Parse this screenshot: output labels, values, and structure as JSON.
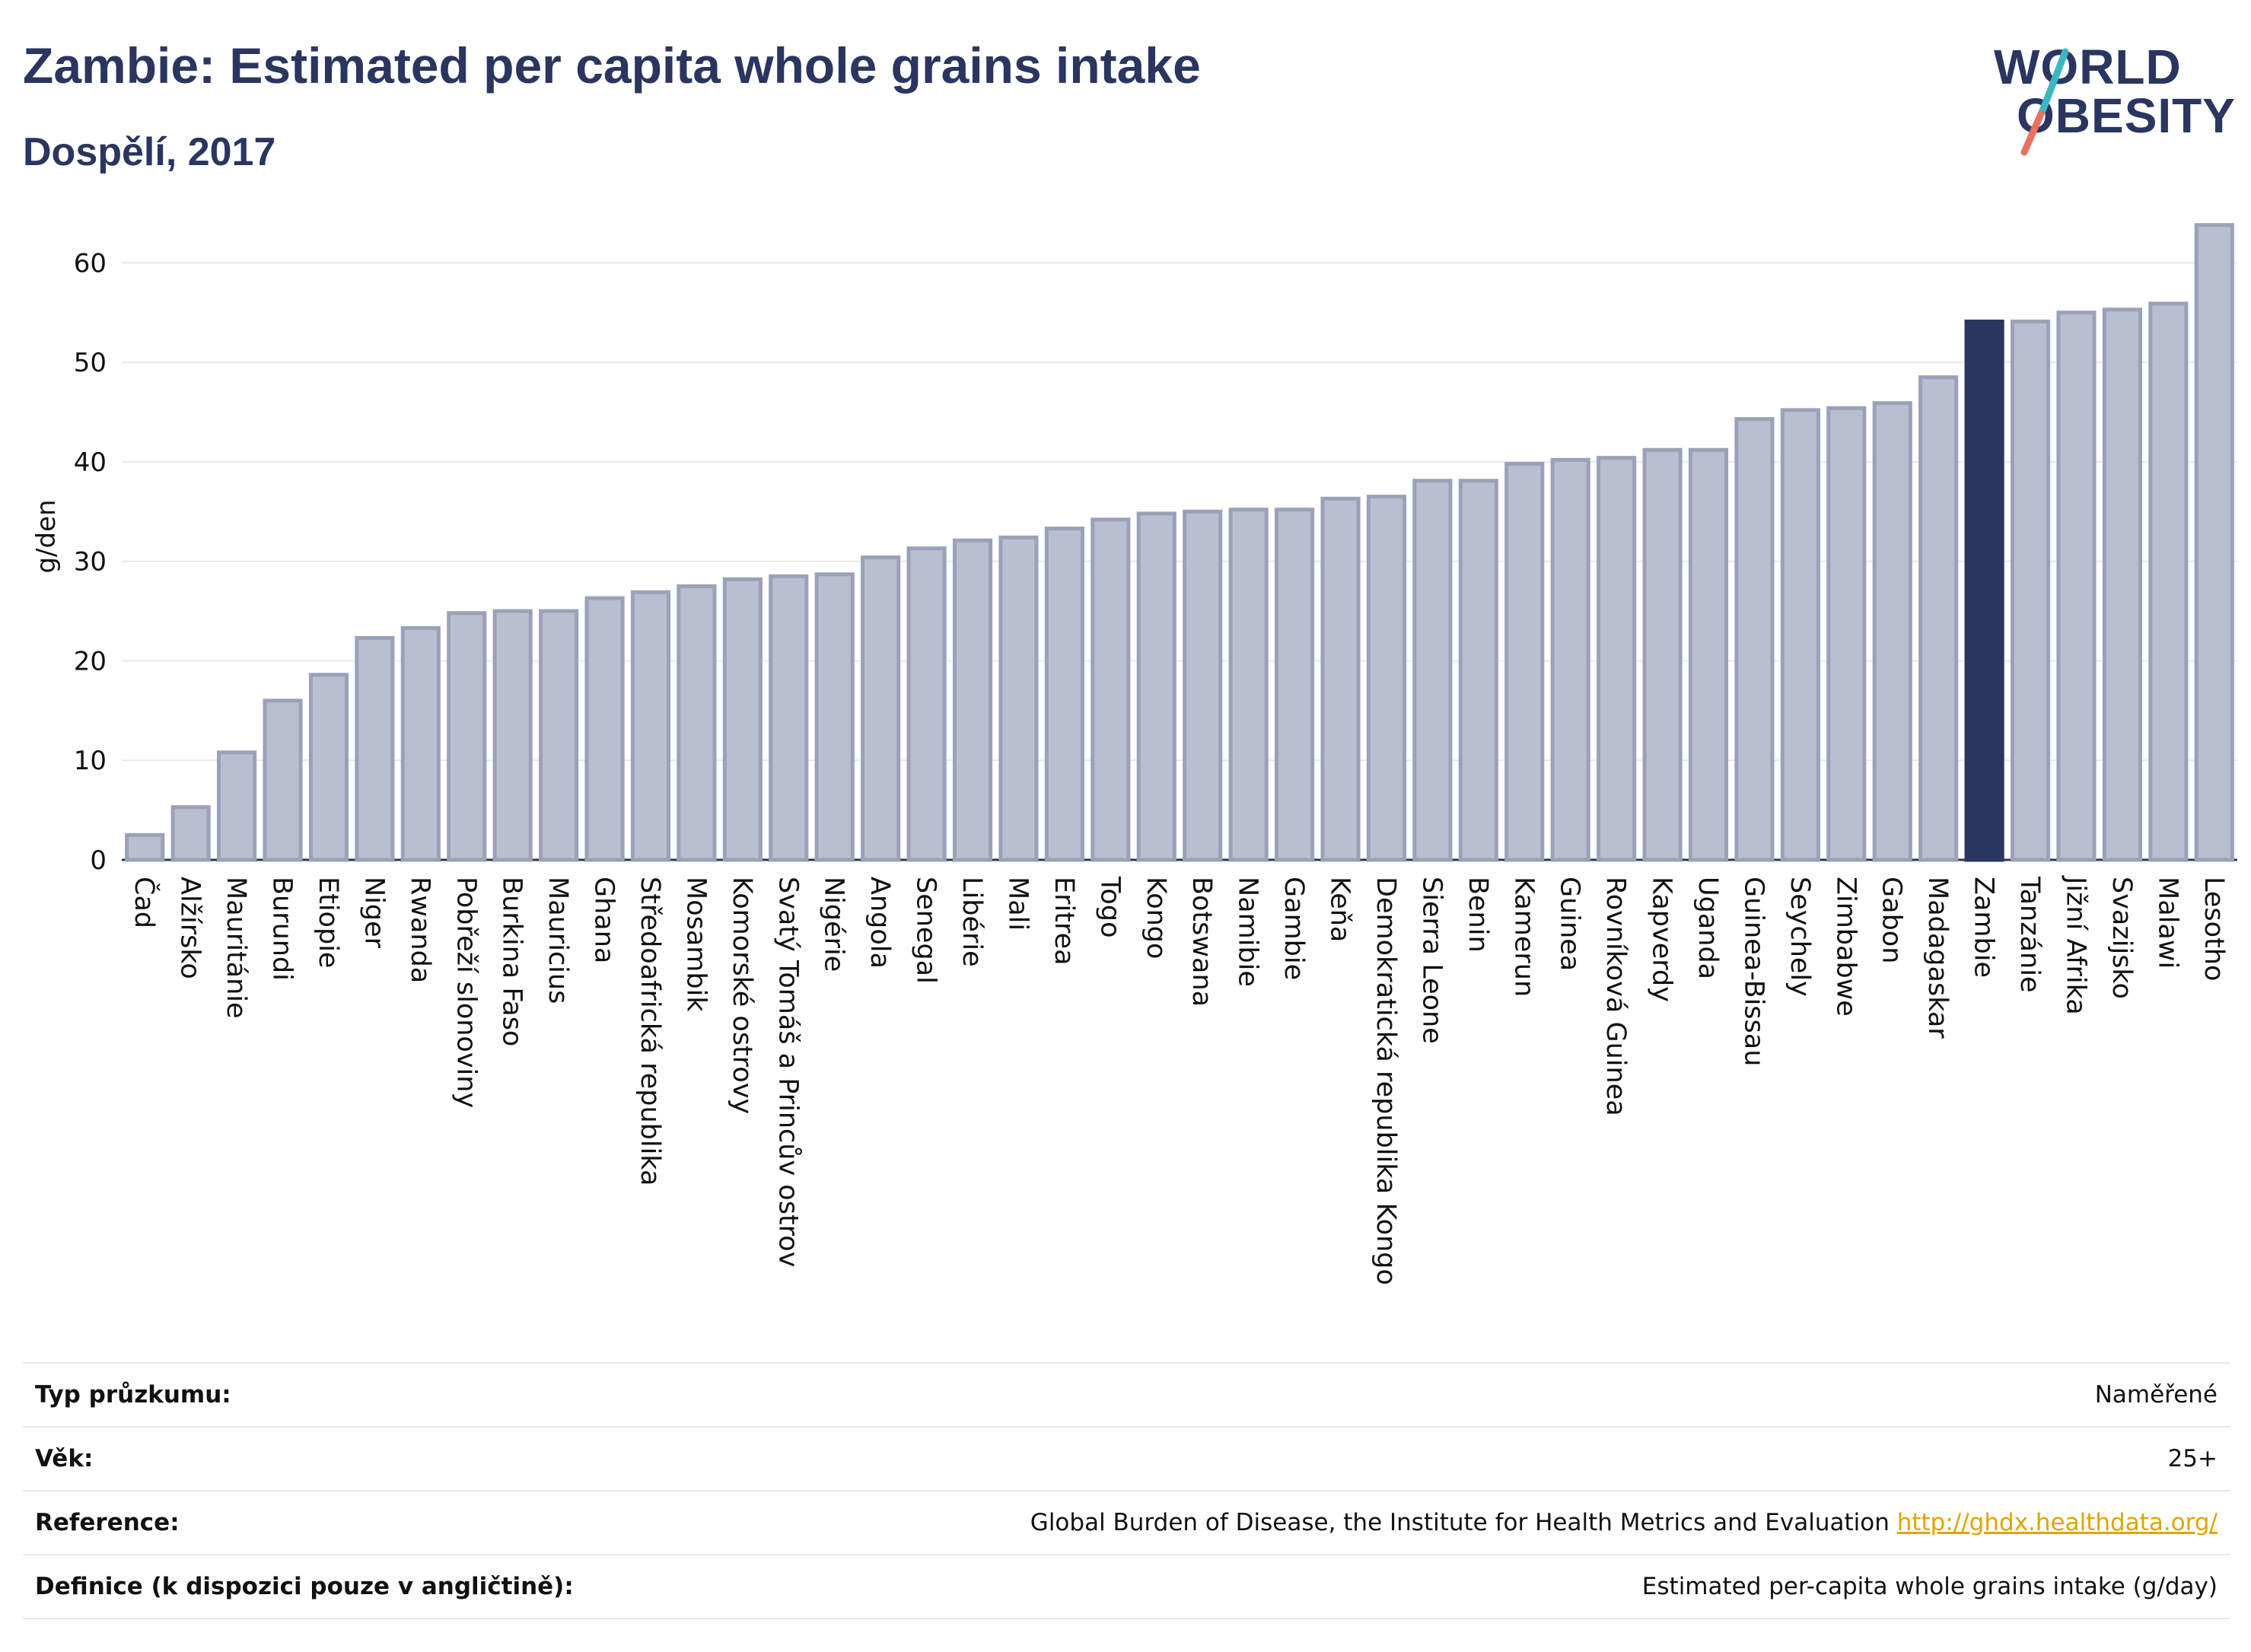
{
  "title": "Zambie: Estimated per capita whole grains intake",
  "subtitle": "Dospělí, 2017",
  "logo": {
    "line1": "WORLD",
    "line2": "OBESITY"
  },
  "colors": {
    "bar": "#b9bfd0",
    "bar_edge": "#9aa1b8",
    "highlight": "#2a3560",
    "grid": "#e6e8ee",
    "text": "#2a3560"
  },
  "chart_data": {
    "type": "bar",
    "ylabel": "g/den",
    "ylim": [
      0,
      65
    ],
    "yticks": [
      0,
      10,
      20,
      30,
      40,
      50,
      60
    ],
    "highlight": "Zambie",
    "categories": [
      "Čad",
      "Alžírsko",
      "Mauritánie",
      "Burundi",
      "Etiopie",
      "Niger",
      "Rwanda",
      "Pobřeží slonoviny",
      "Burkina Faso",
      "Mauricius",
      "Ghana",
      "Středoafrická republika",
      "Mosambik",
      "Komorské ostrovy",
      "Svatý Tomáš a Princův ostrov",
      "Nigérie",
      "Angola",
      "Senegal",
      "Libérie",
      "Mali",
      "Eritrea",
      "Togo",
      "Kongo",
      "Botswana",
      "Namibie",
      "Gambie",
      "Keňa",
      "Demokratická republika Kongo",
      "Sierra Leone",
      "Benin",
      "Kamerun",
      "Guinea",
      "Rovníková Guinea",
      "Kapverdy",
      "Uganda",
      "Guinea-Bissau",
      "Seychely",
      "Zimbabwe",
      "Gabon",
      "Madagaskar",
      "Zambie",
      "Tanzánie",
      "Jižní Afrika",
      "Svazijsko",
      "Malawi",
      "Lesotho"
    ],
    "values": [
      2.5,
      5.3,
      10.8,
      16.0,
      18.6,
      22.3,
      23.3,
      24.8,
      25.0,
      25.0,
      26.3,
      26.9,
      27.5,
      28.2,
      28.5,
      28.7,
      30.4,
      31.3,
      32.1,
      32.4,
      33.3,
      34.2,
      34.8,
      35.0,
      35.2,
      35.2,
      36.3,
      36.5,
      38.1,
      38.1,
      39.8,
      40.2,
      40.4,
      41.2,
      41.2,
      44.3,
      45.2,
      45.4,
      45.9,
      48.5,
      54.1,
      54.1,
      55.0,
      55.3,
      55.9,
      63.8
    ]
  },
  "meta": [
    {
      "label": "Typ průzkumu:",
      "value": "Naměřené"
    },
    {
      "label": "Věk:",
      "value": "25+"
    },
    {
      "label": "Reference:",
      "value": "Global Burden of Disease, the Institute for Health Metrics and Evaluation",
      "link": "http://ghdx.healthdata.org/"
    },
    {
      "label": "Definice (k dispozici pouze v angličtině):",
      "value": "Estimated per-capita whole grains intake (g/day)"
    }
  ]
}
